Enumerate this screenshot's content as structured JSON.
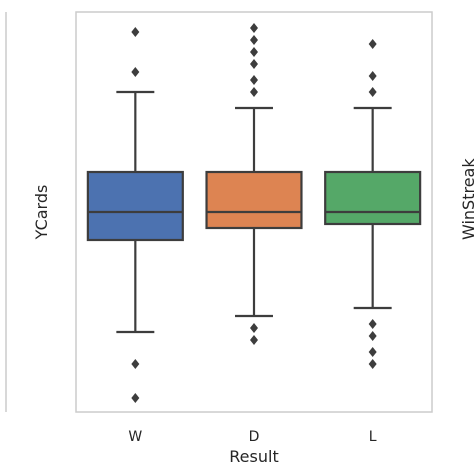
{
  "chart_data": {
    "type": "box",
    "xlabel": "Result",
    "ylabel": "YCards",
    "right_neighbor_label_fragment": "WinStreak",
    "categories": [
      "W",
      "D",
      "L"
    ],
    "colors": [
      "#4c72b0",
      "#dd8452",
      "#55a868"
    ],
    "ylim": [
      0,
      10
    ],
    "boxes": [
      {
        "category": "W",
        "whisker_low": 2.0,
        "q1": 4.3,
        "median": 5.0,
        "q3": 6.0,
        "whisker_high": 8.0,
        "outliers": [
          1.2,
          0.35,
          8.5,
          9.5
        ]
      },
      {
        "category": "D",
        "whisker_low": 2.4,
        "q1": 4.6,
        "median": 5.0,
        "q3": 6.0,
        "whisker_high": 7.6,
        "outliers": [
          2.1,
          1.8,
          8.0,
          8.3,
          8.7,
          9.0,
          9.3,
          9.6
        ]
      },
      {
        "category": "L",
        "whisker_low": 2.6,
        "q1": 4.7,
        "median": 5.0,
        "q3": 6.0,
        "whisker_high": 7.6,
        "outliers": [
          2.2,
          1.9,
          1.5,
          1.2,
          8.0,
          8.4,
          9.2
        ]
      }
    ],
    "grid": false
  }
}
